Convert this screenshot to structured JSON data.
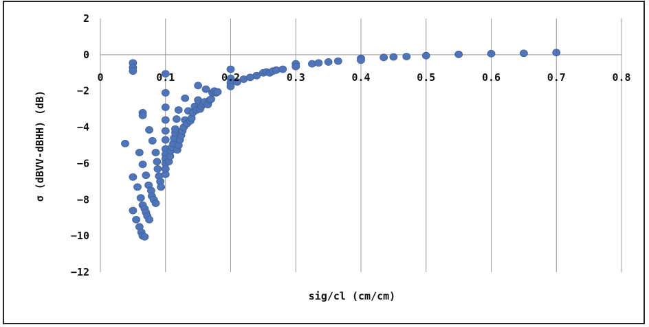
{
  "chart_data": {
    "type": "scatter",
    "xlabel": "sig/cl (cm/cm)",
    "ylabel": "σ (dBVV-dBHH) (dB)",
    "xlim": [
      0,
      0.8
    ],
    "ylim": [
      -12,
      2
    ],
    "x_ticks": [
      "0",
      "0.1",
      "0.2",
      "0.3",
      "0.4",
      "0.5",
      "0.6",
      "0.7",
      "0.8"
    ],
    "y_ticks": [
      "2",
      "0",
      "−2",
      "−4",
      "−6",
      "−8",
      "−10",
      "−12"
    ],
    "grid": "vertical",
    "legend": "none",
    "marker_color": "#4f74b8",
    "series": [
      {
        "points": [
          [
            0.038,
            -4.9
          ],
          [
            0.05,
            -0.45
          ],
          [
            0.05,
            -0.7
          ],
          [
            0.05,
            -0.9
          ],
          [
            0.05,
            -6.75
          ],
          [
            0.05,
            -8.6
          ],
          [
            0.055,
            -9.1
          ],
          [
            0.057,
            -7.3
          ],
          [
            0.06,
            -5.4
          ],
          [
            0.06,
            -9.5
          ],
          [
            0.062,
            -7.9
          ],
          [
            0.063,
            -9.8
          ],
          [
            0.065,
            -3.2
          ],
          [
            0.065,
            -3.35
          ],
          [
            0.065,
            -6.05
          ],
          [
            0.065,
            -8.3
          ],
          [
            0.065,
            -10.0
          ],
          [
            0.068,
            -8.5
          ],
          [
            0.068,
            -10.05
          ],
          [
            0.07,
            -6.65
          ],
          [
            0.07,
            -8.7
          ],
          [
            0.072,
            -8.9
          ],
          [
            0.074,
            -7.2
          ],
          [
            0.075,
            -4.15
          ],
          [
            0.075,
            -9.1
          ],
          [
            0.078,
            -7.5
          ],
          [
            0.079,
            -7.8
          ],
          [
            0.08,
            -4.75
          ],
          [
            0.082,
            -8.0
          ],
          [
            0.085,
            -8.2
          ],
          [
            0.085,
            -5.4
          ],
          [
            0.087,
            -5.9
          ],
          [
            0.088,
            -6.3
          ],
          [
            0.09,
            -6.7
          ],
          [
            0.092,
            -7.0
          ],
          [
            0.093,
            -7.3
          ],
          [
            0.1,
            -1.05
          ],
          [
            0.1,
            -2.1
          ],
          [
            0.1,
            -2.9
          ],
          [
            0.1,
            -3.6
          ],
          [
            0.1,
            -4.2
          ],
          [
            0.1,
            -4.7
          ],
          [
            0.1,
            -5.2
          ],
          [
            0.1,
            -5.5
          ],
          [
            0.1,
            -5.75
          ],
          [
            0.1,
            -6.0
          ],
          [
            0.1,
            -6.3
          ],
          [
            0.1,
            -6.6
          ],
          [
            0.105,
            -5.9
          ],
          [
            0.107,
            -5.6
          ],
          [
            0.108,
            -5.3
          ],
          [
            0.11,
            -5.1
          ],
          [
            0.112,
            -4.9
          ],
          [
            0.113,
            -4.6
          ],
          [
            0.115,
            -4.3
          ],
          [
            0.115,
            -4.1
          ],
          [
            0.117,
            -3.55
          ],
          [
            0.118,
            -5.25
          ],
          [
            0.12,
            -3.05
          ],
          [
            0.12,
            -5.0
          ],
          [
            0.122,
            -4.7
          ],
          [
            0.124,
            -4.45
          ],
          [
            0.126,
            -4.2
          ],
          [
            0.128,
            -4.0
          ],
          [
            0.13,
            -2.4
          ],
          [
            0.13,
            -3.6
          ],
          [
            0.133,
            -3.8
          ],
          [
            0.135,
            -3.1
          ],
          [
            0.138,
            -3.65
          ],
          [
            0.14,
            -3.5
          ],
          [
            0.142,
            -3.2
          ],
          [
            0.145,
            -2.85
          ],
          [
            0.148,
            -3.05
          ],
          [
            0.15,
            -1.7
          ],
          [
            0.15,
            -2.5
          ],
          [
            0.153,
            -3.0
          ],
          [
            0.155,
            -2.85
          ],
          [
            0.158,
            -2.7
          ],
          [
            0.16,
            -2.6
          ],
          [
            0.162,
            -1.9
          ],
          [
            0.165,
            -2.75
          ],
          [
            0.168,
            -2.5
          ],
          [
            0.17,
            -2.45
          ],
          [
            0.172,
            -2.1
          ],
          [
            0.175,
            -2.0
          ],
          [
            0.178,
            -2.1
          ],
          [
            0.18,
            -2.05
          ],
          [
            0.2,
            -0.8
          ],
          [
            0.2,
            -1.3
          ],
          [
            0.2,
            -1.55
          ],
          [
            0.2,
            -1.75
          ],
          [
            0.21,
            -1.5
          ],
          [
            0.22,
            -1.35
          ],
          [
            0.23,
            -1.25
          ],
          [
            0.24,
            -1.15
          ],
          [
            0.25,
            -1.0
          ],
          [
            0.255,
            -0.95
          ],
          [
            0.26,
            -1.0
          ],
          [
            0.265,
            -0.9
          ],
          [
            0.27,
            -0.85
          ],
          [
            0.28,
            -0.8
          ],
          [
            0.3,
            -0.5
          ],
          [
            0.3,
            -0.65
          ],
          [
            0.325,
            -0.5
          ],
          [
            0.335,
            -0.45
          ],
          [
            0.35,
            -0.4
          ],
          [
            0.365,
            -0.35
          ],
          [
            0.4,
            -0.2
          ],
          [
            0.4,
            -0.3
          ],
          [
            0.435,
            -0.15
          ],
          [
            0.45,
            -0.12
          ],
          [
            0.47,
            -0.1
          ],
          [
            0.5,
            -0.05
          ],
          [
            0.55,
            0.02
          ],
          [
            0.6,
            0.06
          ],
          [
            0.65,
            0.08
          ],
          [
            0.7,
            0.12
          ]
        ]
      }
    ]
  }
}
